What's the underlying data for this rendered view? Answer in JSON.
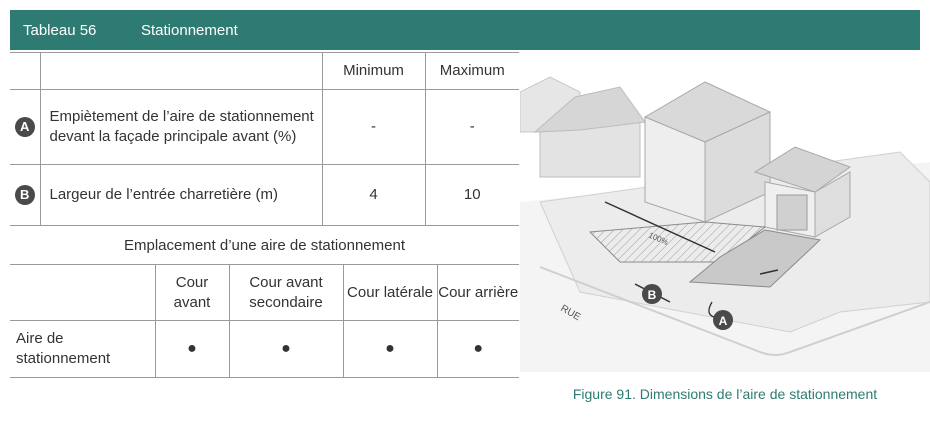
{
  "header": {
    "table_number": "Tableau 56",
    "title": "Stationnement"
  },
  "table_main": {
    "columns": [
      "",
      "",
      "Minimum",
      "Maximum"
    ],
    "rows": [
      {
        "marker": "A",
        "label": "Empiètement de l’aire de stationnement devant la façade principale avant (%)",
        "min": "-",
        "max": "-"
      },
      {
        "marker": "B",
        "label": "Largeur de l’entrée charretière (m)",
        "min": "4",
        "max": "10"
      }
    ]
  },
  "section_title": "Emplacement d’une aire de stationnement",
  "table_location": {
    "columns": [
      "",
      "Cour avant",
      "Cour avant secondaire",
      "Cour latérale",
      "Cour arrière"
    ],
    "row": {
      "label": "Aire de stationnement",
      "values": [
        "●",
        "●",
        "●",
        "●"
      ]
    }
  },
  "figure": {
    "caption": "Figure 91. Dimensions de l’aire de stationnement",
    "street_label": "RUE",
    "dimension_label": "100%",
    "marker_a": "A",
    "marker_b": "B"
  }
}
